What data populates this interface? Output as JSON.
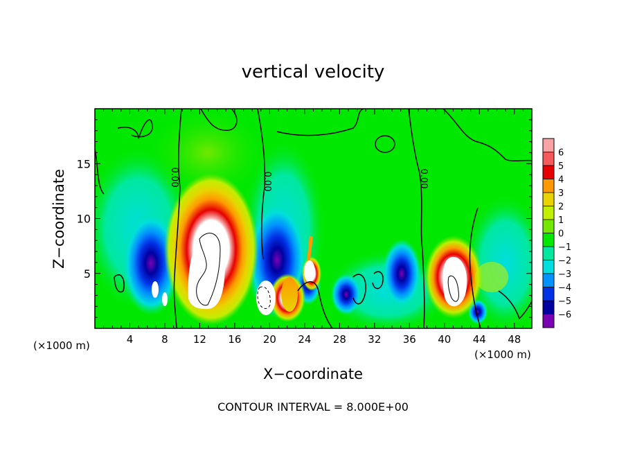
{
  "chart_data": {
    "type": "heatmap",
    "title": "vertical velocity",
    "xlabel": "X−coordinate",
    "ylabel": "Z−coordinate",
    "x_unit_left": "(×1000 m)",
    "x_unit_right": "(×1000 m)",
    "footer": "CONTOUR INTERVAL = 8.000E+00",
    "xlim": [
      0,
      50
    ],
    "ylim": [
      0,
      20
    ],
    "x_ticks": [
      "4",
      "8",
      "12",
      "16",
      "20",
      "24",
      "28",
      "32",
      "36",
      "40",
      "44",
      "48"
    ],
    "y_ticks": [
      "5",
      "10",
      "15"
    ],
    "contour_labels": [
      "0.00",
      "0.00",
      "0.00"
    ],
    "colorbar": {
      "levels": [
        "6",
        "5",
        "4",
        "3",
        "2",
        "1",
        "0",
        "−1",
        "−2",
        "−3",
        "−4",
        "−5",
        "−6"
      ],
      "colors": [
        "#f7a3a3",
        "#f45a5a",
        "#e60000",
        "#ff9900",
        "#e8d300",
        "#c2ee00",
        "#72e800",
        "#00e800",
        "#00e8a0",
        "#00dede",
        "#0092ff",
        "#0032e6",
        "#0000a0",
        "#7a00b4"
      ]
    },
    "features": [
      {
        "kind": "updraft",
        "x": 13.5,
        "z": 7.0,
        "w": 30,
        "name": "main updraft core"
      },
      {
        "kind": "updraft",
        "x": 40.5,
        "z": 4.2,
        "w": 24,
        "name": "secondary updraft"
      },
      {
        "kind": "updraft",
        "x": 24.5,
        "z": 5.0,
        "w": 12
      },
      {
        "kind": "updraft",
        "x": 22.0,
        "z": 3.0,
        "w": 6
      },
      {
        "kind": "downdraft",
        "x": 6.5,
        "z": 4.8,
        "w": -8
      },
      {
        "kind": "downdraft",
        "x": 19.5,
        "z": 5.5,
        "w": -7
      },
      {
        "kind": "downdraft",
        "x": 35.0,
        "z": 5.0,
        "w": -4
      },
      {
        "kind": "downdraft",
        "x": 29.5,
        "z": 3.0,
        "w": -5
      }
    ]
  }
}
